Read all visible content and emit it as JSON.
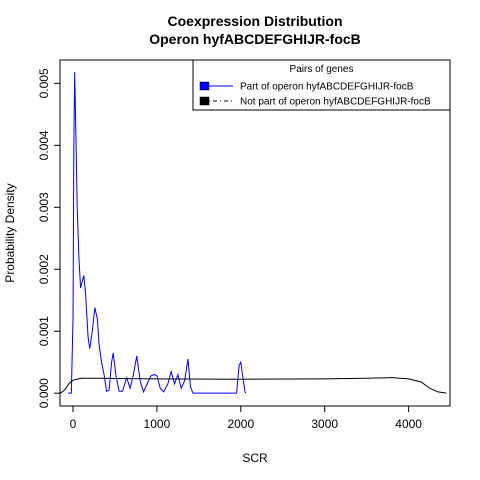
{
  "chart_data": {
    "type": "line",
    "title": "Coexpression Distribution",
    "subtitle": "Operon hyfABCDEFGHIJR-focB",
    "x_label": "SCR",
    "y_label": "Probability Density",
    "xlim": [
      -155,
      4493
    ],
    "ylim": [
      -0.000207,
      0.005377
    ],
    "xticks": [
      0,
      1000,
      2000,
      3000,
      4000
    ],
    "yticks": [
      {
        "value": 0,
        "label": "0.000"
      },
      {
        "value": 0.001,
        "label": "0.001"
      },
      {
        "value": 0.002,
        "label": "0.002"
      },
      {
        "value": 0.003,
        "label": "0.003"
      },
      {
        "value": 0.004,
        "label": "0.004"
      },
      {
        "value": 0.005,
        "label": "0.005"
      }
    ],
    "legend_title": "Pairs of genes",
    "legend_position": "top-right",
    "series": [
      {
        "name": "Part of operon hyfABCDEFGHIJR-focB",
        "color": "#0000ff",
        "legend_linestyle": "solid",
        "x": [
          -60,
          -20,
          0,
          10,
          20,
          30,
          50,
          70,
          90,
          110,
          130,
          150,
          180,
          200,
          230,
          260,
          290,
          310,
          340,
          370,
          400,
          430,
          460,
          480,
          510,
          550,
          590,
          640,
          680,
          720,
          760,
          800,
          840,
          900,
          930,
          970,
          1000,
          1040,
          1080,
          1130,
          1170,
          1210,
          1250,
          1290,
          1330,
          1370,
          1400,
          1430,
          1950,
          1980,
          2000,
          2020,
          2050,
          2060
        ],
        "values": [
          0,
          0,
          0.0012,
          0.004,
          0.00518,
          0.0045,
          0.003,
          0.0022,
          0.0017,
          0.0018,
          0.0019,
          0.0016,
          0.0009,
          0.00072,
          0.001,
          0.00138,
          0.0012,
          0.0008,
          0.0005,
          0.0003,
          3e-05,
          5e-05,
          0.0005,
          0.00065,
          0.0003,
          3e-05,
          3e-05,
          0.00025,
          8e-05,
          0.0003,
          0.0006,
          0.0002,
          2e-05,
          0.0002,
          0.00028,
          0.0003,
          0.00028,
          8e-05,
          2e-05,
          0.00015,
          0.00035,
          0.00015,
          0.0003,
          8e-05,
          0.0002,
          0.00055,
          0.0001,
          0,
          0,
          0.00045,
          0.0005,
          0.0003,
          2e-05,
          0
        ]
      },
      {
        "name": "Not part of operon hyfABCDEFGHIJR-focB",
        "color": "#000000",
        "legend_linestyle": "dotdash",
        "x": [
          -150,
          -100,
          -50,
          0,
          100,
          300,
          1000,
          2000,
          3000,
          3500,
          3800,
          4000,
          4150,
          4250,
          4350,
          4450
        ],
        "values": [
          0,
          5e-05,
          0.00015,
          0.00021,
          0.00024,
          0.00024,
          0.00023,
          0.000225,
          0.00023,
          0.00024,
          0.00025,
          0.00023,
          0.00018,
          8e-05,
          2e-05,
          0
        ]
      }
    ]
  }
}
